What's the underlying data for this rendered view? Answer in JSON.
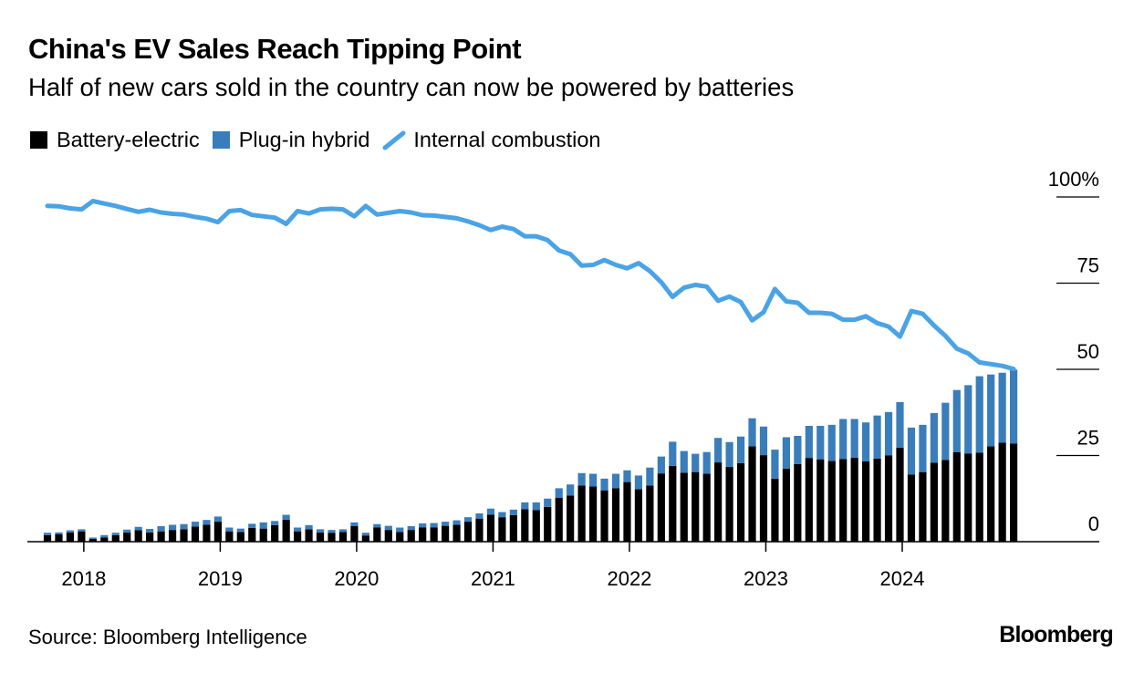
{
  "header": {
    "title": "China's EV Sales Reach Tipping Point",
    "subtitle": "Half of new cars sold in the country can now be powered by batteries"
  },
  "footer": {
    "source": "Source: Bloomberg Intelligence",
    "logo": "Bloomberg"
  },
  "chart_data": {
    "type": "bar",
    "stacked": true,
    "title": "China's EV Sales Reach Tipping Point",
    "subtitle": "Half of new cars sold in the country can now be powered by batteries",
    "legend_position": "top-left",
    "y_axis_side": "right",
    "ylim": [
      0,
      100
    ],
    "y_ticks": [
      "100%",
      "75",
      "50",
      "25",
      "0"
    ],
    "y_tick_values": [
      100,
      75,
      50,
      25,
      0
    ],
    "x_ticks": [
      "2018",
      "2019",
      "2020",
      "2021",
      "2022",
      "2023",
      "2024"
    ],
    "x_tick_months": [
      "2018-01",
      "2019-01",
      "2020-01",
      "2021-01",
      "2022-01",
      "2023-01",
      "2024-01"
    ],
    "x": [
      "2017-09",
      "2017-10",
      "2017-11",
      "2017-12",
      "2018-01",
      "2018-02",
      "2018-03",
      "2018-04",
      "2018-05",
      "2018-06",
      "2018-07",
      "2018-08",
      "2018-09",
      "2018-10",
      "2018-11",
      "2018-12",
      "2019-01",
      "2019-02",
      "2019-03",
      "2019-04",
      "2019-05",
      "2019-06",
      "2019-07",
      "2019-08",
      "2019-09",
      "2019-10",
      "2019-11",
      "2019-12",
      "2020-01",
      "2020-02",
      "2020-03",
      "2020-04",
      "2020-05",
      "2020-06",
      "2020-07",
      "2020-08",
      "2020-09",
      "2020-10",
      "2020-11",
      "2020-12",
      "2021-01",
      "2021-02",
      "2021-03",
      "2021-04",
      "2021-05",
      "2021-06",
      "2021-07",
      "2021-08",
      "2021-09",
      "2021-10",
      "2021-11",
      "2021-12",
      "2022-01",
      "2022-02",
      "2022-03",
      "2022-04",
      "2022-05",
      "2022-06",
      "2022-07",
      "2022-08",
      "2022-09",
      "2022-10",
      "2022-11",
      "2022-12",
      "2023-01",
      "2023-02",
      "2023-03",
      "2023-04",
      "2023-05",
      "2023-06",
      "2023-07",
      "2023-08",
      "2023-09",
      "2023-10",
      "2023-11",
      "2023-12",
      "2024-01",
      "2024-02",
      "2024-03",
      "2024-04",
      "2024-05",
      "2024-06",
      "2024-07",
      "2024-08",
      "2024-09",
      "2024-10"
    ],
    "series": [
      {
        "name": "Battery-electric",
        "type": "bar",
        "color": "#000000",
        "values": [
          1.9,
          2.2,
          2.7,
          3.0,
          0.8,
          1.2,
          1.9,
          2.7,
          3.3,
          2.7,
          3.0,
          3.4,
          3.6,
          4.4,
          4.9,
          5.8,
          3.0,
          2.8,
          4.0,
          3.8,
          4.8,
          6.4,
          3.0,
          3.6,
          2.7,
          2.6,
          2.8,
          4.5,
          1.8,
          4.1,
          3.4,
          2.8,
          3.4,
          4.1,
          4.1,
          4.6,
          4.9,
          5.8,
          6.7,
          7.8,
          7.1,
          7.7,
          9.4,
          9.2,
          10.1,
          12.7,
          13.4,
          16.3,
          16.0,
          14.9,
          15.5,
          17.3,
          15.2,
          16.3,
          19.8,
          22.0,
          20.0,
          20.2,
          19.7,
          23.0,
          21.7,
          22.8,
          27.7,
          25.1,
          18.3,
          21.2,
          22.5,
          24.3,
          23.9,
          23.4,
          24.0,
          24.4,
          23.3,
          24.1,
          25.0,
          27.3,
          19.5,
          20.2,
          22.9,
          23.7,
          26.0,
          25.6,
          25.8,
          27.7,
          28.7,
          28.5
        ]
      },
      {
        "name": "Plug-in hybrid",
        "type": "bar",
        "color": "#3a7dbb",
        "values": [
          0.7,
          0.5,
          0.6,
          0.6,
          0.4,
          0.7,
          0.7,
          0.8,
          1.0,
          1.0,
          1.5,
          1.5,
          1.5,
          1.4,
          1.4,
          1.5,
          1.1,
          1.0,
          1.2,
          1.8,
          1.2,
          1.4,
          1.1,
          1.2,
          0.9,
          0.8,
          0.8,
          1.1,
          0.8,
          1.0,
          1.2,
          1.3,
          1.1,
          1.2,
          1.3,
          1.2,
          1.3,
          1.3,
          1.5,
          1.8,
          1.5,
          1.6,
          2.0,
          2.2,
          2.4,
          2.8,
          3.2,
          3.6,
          3.7,
          3.4,
          4.2,
          3.4,
          4.0,
          5.2,
          4.9,
          7.0,
          6.3,
          5.3,
          6.3,
          7.1,
          7.2,
          7.7,
          8.1,
          8.3,
          8.4,
          9.1,
          8.2,
          9.3,
          9.7,
          10.5,
          11.6,
          11.2,
          11.3,
          12.5,
          12.6,
          13.2,
          13.6,
          13.7,
          14.4,
          16.6,
          18.0,
          19.8,
          22.2,
          20.8,
          20.3,
          21.4
        ]
      },
      {
        "name": "Internal combustion",
        "type": "line",
        "color": "#4aa3e6",
        "values": [
          97.4,
          97.3,
          96.7,
          96.4,
          98.8,
          98.1,
          97.4,
          96.5,
          95.7,
          96.3,
          95.5,
          95.1,
          94.9,
          94.2,
          93.7,
          92.7,
          95.9,
          96.2,
          94.8,
          94.4,
          94.0,
          92.2,
          95.9,
          95.2,
          96.4,
          96.6,
          96.4,
          94.4,
          97.4,
          94.9,
          95.4,
          95.9,
          95.5,
          94.7,
          94.6,
          94.2,
          93.8,
          92.9,
          91.8,
          90.4,
          91.4,
          90.7,
          88.6,
          88.6,
          87.5,
          84.5,
          83.4,
          80.1,
          80.3,
          81.7,
          80.3,
          79.3,
          80.8,
          78.5,
          75.3,
          71.0,
          73.7,
          74.5,
          74.0,
          69.9,
          71.1,
          69.5,
          64.2,
          66.6,
          73.3,
          69.7,
          69.3,
          66.4,
          66.4,
          66.1,
          64.4,
          64.4,
          65.4,
          63.4,
          62.4,
          59.5,
          66.9,
          66.1,
          62.7,
          59.7,
          56.0,
          54.6,
          52.0,
          51.5,
          51.0,
          50.1
        ]
      }
    ]
  }
}
